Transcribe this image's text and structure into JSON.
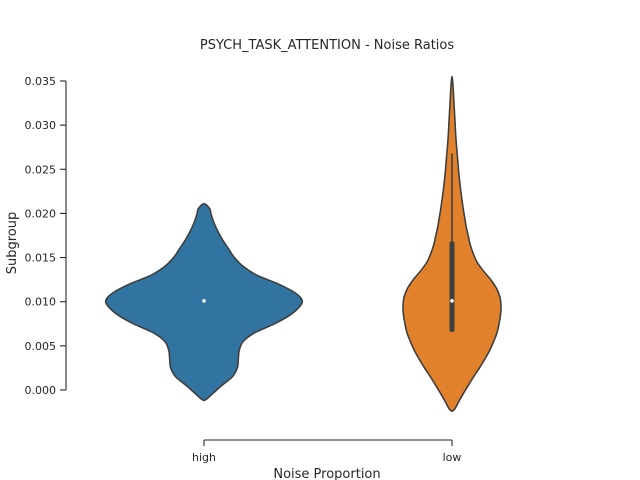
{
  "chart_data": {
    "type": "violin",
    "title": "PSYCH_TASK_ATTENTION - Noise Ratios",
    "xlabel": "Noise Proportion",
    "ylabel": "Subgroup",
    "categories": [
      "high",
      "low"
    ],
    "ylim": [
      0.0,
      0.035
    ],
    "yticks": [
      0.0,
      0.005,
      0.01,
      0.015,
      0.02,
      0.025,
      0.03,
      0.035
    ],
    "ytick_labels": [
      "0.000",
      "0.005",
      "0.010",
      "0.015",
      "0.020",
      "0.025",
      "0.030",
      "0.035"
    ],
    "grid": false,
    "legend": "none",
    "violins": [
      {
        "category": "high",
        "color": "#3274a1",
        "median": 0.0101,
        "q1": 0.0101,
        "q3": 0.0101,
        "whisker_low": 0.0101,
        "whisker_high": 0.0101,
        "profile": [
          [
            -0.0012,
            0.0
          ],
          [
            -0.001,
            0.03
          ],
          [
            -0.0005,
            0.08
          ],
          [
            0.0005,
            0.18
          ],
          [
            0.0015,
            0.29
          ],
          [
            0.0025,
            0.34
          ],
          [
            0.0035,
            0.35
          ],
          [
            0.0045,
            0.36
          ],
          [
            0.0055,
            0.4
          ],
          [
            0.0065,
            0.52
          ],
          [
            0.0075,
            0.72
          ],
          [
            0.0085,
            0.88
          ],
          [
            0.0095,
            0.98
          ],
          [
            0.0102,
            1.0
          ],
          [
            0.011,
            0.93
          ],
          [
            0.012,
            0.76
          ],
          [
            0.013,
            0.54
          ],
          [
            0.014,
            0.4
          ],
          [
            0.015,
            0.31
          ],
          [
            0.016,
            0.25
          ],
          [
            0.017,
            0.19
          ],
          [
            0.018,
            0.14
          ],
          [
            0.019,
            0.1
          ],
          [
            0.02,
            0.07
          ],
          [
            0.0205,
            0.06
          ],
          [
            0.0211,
            0.0
          ]
        ]
      },
      {
        "category": "low",
        "color": "#e1812c",
        "median": 0.0101,
        "q1": 0.0066,
        "q3": 0.0168,
        "whisker_low": 0.0066,
        "whisker_high": 0.0268,
        "profile": [
          [
            -0.0024,
            0.0
          ],
          [
            -0.0022,
            0.05
          ],
          [
            -0.0015,
            0.12
          ],
          [
            -0.0005,
            0.22
          ],
          [
            0.0005,
            0.33
          ],
          [
            0.0015,
            0.44
          ],
          [
            0.0025,
            0.56
          ],
          [
            0.0035,
            0.67
          ],
          [
            0.0045,
            0.77
          ],
          [
            0.0055,
            0.85
          ],
          [
            0.0065,
            0.92
          ],
          [
            0.0075,
            0.96
          ],
          [
            0.0085,
            0.99
          ],
          [
            0.0095,
            1.0
          ],
          [
            0.0105,
            0.98
          ],
          [
            0.0115,
            0.91
          ],
          [
            0.0125,
            0.79
          ],
          [
            0.0135,
            0.64
          ],
          [
            0.0145,
            0.51
          ],
          [
            0.0155,
            0.43
          ],
          [
            0.0165,
            0.37
          ],
          [
            0.0175,
            0.33
          ],
          [
            0.0185,
            0.29
          ],
          [
            0.0195,
            0.26
          ],
          [
            0.0205,
            0.23
          ],
          [
            0.0225,
            0.18
          ],
          [
            0.0245,
            0.14
          ],
          [
            0.0265,
            0.11
          ],
          [
            0.0285,
            0.08
          ],
          [
            0.0305,
            0.06
          ],
          [
            0.0325,
            0.04
          ],
          [
            0.0345,
            0.02
          ],
          [
            0.0355,
            0.0
          ]
        ]
      }
    ]
  }
}
